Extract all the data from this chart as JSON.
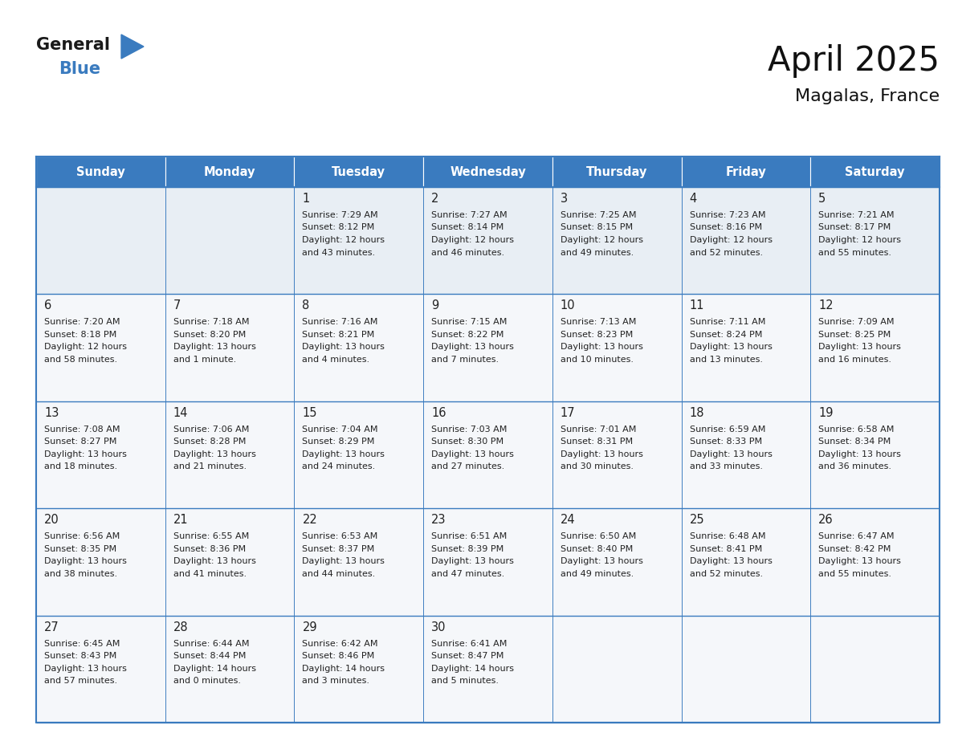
{
  "title": "April 2025",
  "subtitle": "Magalas, France",
  "header_color": "#3a7bbf",
  "header_text_color": "#ffffff",
  "row1_bg": "#e8eef4",
  "row_other_bg": "#f5f7fa",
  "border_color": "#3a7bbf",
  "text_color": "#222222",
  "days_of_week": [
    "Sunday",
    "Monday",
    "Tuesday",
    "Wednesday",
    "Thursday",
    "Friday",
    "Saturday"
  ],
  "weeks": [
    [
      {
        "day": "",
        "sunrise": "",
        "sunset": "",
        "daylight": ""
      },
      {
        "day": "",
        "sunrise": "",
        "sunset": "",
        "daylight": ""
      },
      {
        "day": "1",
        "sunrise": "7:29 AM",
        "sunset": "8:12 PM",
        "daylight": "12 hours\nand 43 minutes."
      },
      {
        "day": "2",
        "sunrise": "7:27 AM",
        "sunset": "8:14 PM",
        "daylight": "12 hours\nand 46 minutes."
      },
      {
        "day": "3",
        "sunrise": "7:25 AM",
        "sunset": "8:15 PM",
        "daylight": "12 hours\nand 49 minutes."
      },
      {
        "day": "4",
        "sunrise": "7:23 AM",
        "sunset": "8:16 PM",
        "daylight": "12 hours\nand 52 minutes."
      },
      {
        "day": "5",
        "sunrise": "7:21 AM",
        "sunset": "8:17 PM",
        "daylight": "12 hours\nand 55 minutes."
      }
    ],
    [
      {
        "day": "6",
        "sunrise": "7:20 AM",
        "sunset": "8:18 PM",
        "daylight": "12 hours\nand 58 minutes."
      },
      {
        "day": "7",
        "sunrise": "7:18 AM",
        "sunset": "8:20 PM",
        "daylight": "13 hours\nand 1 minute."
      },
      {
        "day": "8",
        "sunrise": "7:16 AM",
        "sunset": "8:21 PM",
        "daylight": "13 hours\nand 4 minutes."
      },
      {
        "day": "9",
        "sunrise": "7:15 AM",
        "sunset": "8:22 PM",
        "daylight": "13 hours\nand 7 minutes."
      },
      {
        "day": "10",
        "sunrise": "7:13 AM",
        "sunset": "8:23 PM",
        "daylight": "13 hours\nand 10 minutes."
      },
      {
        "day": "11",
        "sunrise": "7:11 AM",
        "sunset": "8:24 PM",
        "daylight": "13 hours\nand 13 minutes."
      },
      {
        "day": "12",
        "sunrise": "7:09 AM",
        "sunset": "8:25 PM",
        "daylight": "13 hours\nand 16 minutes."
      }
    ],
    [
      {
        "day": "13",
        "sunrise": "7:08 AM",
        "sunset": "8:27 PM",
        "daylight": "13 hours\nand 18 minutes."
      },
      {
        "day": "14",
        "sunrise": "7:06 AM",
        "sunset": "8:28 PM",
        "daylight": "13 hours\nand 21 minutes."
      },
      {
        "day": "15",
        "sunrise": "7:04 AM",
        "sunset": "8:29 PM",
        "daylight": "13 hours\nand 24 minutes."
      },
      {
        "day": "16",
        "sunrise": "7:03 AM",
        "sunset": "8:30 PM",
        "daylight": "13 hours\nand 27 minutes."
      },
      {
        "day": "17",
        "sunrise": "7:01 AM",
        "sunset": "8:31 PM",
        "daylight": "13 hours\nand 30 minutes."
      },
      {
        "day": "18",
        "sunrise": "6:59 AM",
        "sunset": "8:33 PM",
        "daylight": "13 hours\nand 33 minutes."
      },
      {
        "day": "19",
        "sunrise": "6:58 AM",
        "sunset": "8:34 PM",
        "daylight": "13 hours\nand 36 minutes."
      }
    ],
    [
      {
        "day": "20",
        "sunrise": "6:56 AM",
        "sunset": "8:35 PM",
        "daylight": "13 hours\nand 38 minutes."
      },
      {
        "day": "21",
        "sunrise": "6:55 AM",
        "sunset": "8:36 PM",
        "daylight": "13 hours\nand 41 minutes."
      },
      {
        "day": "22",
        "sunrise": "6:53 AM",
        "sunset": "8:37 PM",
        "daylight": "13 hours\nand 44 minutes."
      },
      {
        "day": "23",
        "sunrise": "6:51 AM",
        "sunset": "8:39 PM",
        "daylight": "13 hours\nand 47 minutes."
      },
      {
        "day": "24",
        "sunrise": "6:50 AM",
        "sunset": "8:40 PM",
        "daylight": "13 hours\nand 49 minutes."
      },
      {
        "day": "25",
        "sunrise": "6:48 AM",
        "sunset": "8:41 PM",
        "daylight": "13 hours\nand 52 minutes."
      },
      {
        "day": "26",
        "sunrise": "6:47 AM",
        "sunset": "8:42 PM",
        "daylight": "13 hours\nand 55 minutes."
      }
    ],
    [
      {
        "day": "27",
        "sunrise": "6:45 AM",
        "sunset": "8:43 PM",
        "daylight": "13 hours\nand 57 minutes."
      },
      {
        "day": "28",
        "sunrise": "6:44 AM",
        "sunset": "8:44 PM",
        "daylight": "14 hours\nand 0 minutes."
      },
      {
        "day": "29",
        "sunrise": "6:42 AM",
        "sunset": "8:46 PM",
        "daylight": "14 hours\nand 3 minutes."
      },
      {
        "day": "30",
        "sunrise": "6:41 AM",
        "sunset": "8:47 PM",
        "daylight": "14 hours\nand 5 minutes."
      },
      {
        "day": "",
        "sunrise": "",
        "sunset": "",
        "daylight": ""
      },
      {
        "day": "",
        "sunrise": "",
        "sunset": "",
        "daylight": ""
      },
      {
        "day": "",
        "sunrise": "",
        "sunset": "",
        "daylight": ""
      }
    ]
  ],
  "logo_general_color": "#1a1a1a",
  "logo_blue_color": "#3a7bbf",
  "fig_width": 11.88,
  "fig_height": 9.18
}
